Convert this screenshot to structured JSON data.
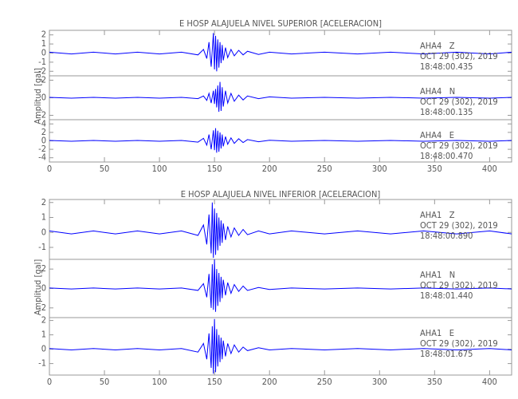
{
  "chart_data": [
    {
      "type": "line",
      "title": "E HOSP ALAJUELA NIVEL SUPERIOR [ACELERACION]",
      "ylabel": "Amplitud [gal]",
      "xlim": [
        0,
        420
      ],
      "xticks": [
        0,
        50,
        100,
        150,
        200,
        250,
        300,
        350,
        400
      ],
      "x": [
        0,
        20,
        40,
        60,
        80,
        100,
        120,
        135,
        140,
        143,
        145,
        147,
        149,
        150,
        151,
        152,
        153,
        154,
        155,
        156,
        157,
        158,
        160,
        162,
        165,
        168,
        172,
        176,
        180,
        190,
        200,
        220,
        250,
        280,
        310,
        340,
        370,
        400,
        420
      ],
      "series": [
        {
          "name": "AHA4   Z",
          "date": "OCT 29 (302), 2019",
          "time": "18:48:00.435",
          "color": "#0000ff",
          "ylim": [
            -2.5,
            2.5
          ],
          "yticks": [
            -2,
            -1,
            0,
            1,
            2
          ],
          "values": [
            0.1,
            -0.1,
            0.1,
            -0.1,
            0.1,
            -0.1,
            0.1,
            -0.2,
            0.4,
            -0.6,
            1.2,
            -1.5,
            2.2,
            -1.8,
            1.9,
            -2,
            1.5,
            -1.6,
            1.2,
            -1.1,
            0.9,
            -0.8,
            0.6,
            -0.5,
            0.4,
            -0.3,
            0.3,
            -0.2,
            0.2,
            -0.15,
            0.1,
            -0.1,
            0.1,
            -0.1,
            0.1,
            -0.1,
            0.1,
            -0.1,
            0.1
          ]
        },
        {
          "name": "AHA4   N",
          "date": "OCT 29 (302), 2019",
          "time": "18:48:00.135",
          "color": "#0000ff",
          "ylim": [
            -2.5,
            2.5
          ],
          "yticks": [
            -2,
            0,
            2
          ],
          "values": [
            0.05,
            -0.05,
            0.05,
            -0.05,
            0.05,
            -0.05,
            0.05,
            -0.1,
            0.2,
            -0.3,
            0.5,
            -0.6,
            0.8,
            -0.7,
            1.0,
            -1.1,
            1.4,
            -1.6,
            1.8,
            -1.5,
            1.2,
            -1.0,
            0.8,
            -0.6,
            0.5,
            -0.4,
            0.3,
            -0.25,
            0.2,
            -0.1,
            0.1,
            -0.05,
            0.05,
            -0.05,
            0.05,
            -0.05,
            0.05,
            -0.05,
            0.05
          ]
        },
        {
          "name": "AHA4   E",
          "date": "OCT 29 (302), 2019",
          "time": "18:48:00.470",
          "color": "#0000ff",
          "ylim": [
            -5,
            5
          ],
          "yticks": [
            -4,
            -2,
            0,
            2,
            4
          ],
          "values": [
            0.1,
            -0.1,
            0.1,
            -0.1,
            0.1,
            -0.1,
            0.1,
            -0.3,
            0.6,
            -1.0,
            1.5,
            -2.0,
            2.5,
            -2.2,
            3.0,
            -2.8,
            2.4,
            -2.6,
            2.0,
            -1.8,
            1.5,
            -1.3,
            1.0,
            -0.8,
            0.7,
            -0.6,
            0.5,
            -0.4,
            0.3,
            -0.2,
            0.15,
            -0.1,
            0.1,
            -0.1,
            0.1,
            -0.1,
            0.1,
            -0.1,
            0.1
          ]
        }
      ]
    },
    {
      "type": "line",
      "title": "E HOSP ALAJUELA NIVEL INFERIOR [ACELERACION]",
      "ylabel": "Amplitud [gal]",
      "xlim": [
        0,
        420
      ],
      "xticks": [
        0,
        50,
        100,
        150,
        200,
        250,
        300,
        350,
        400
      ],
      "x": [
        0,
        20,
        40,
        60,
        80,
        100,
        120,
        135,
        140,
        143,
        145,
        147,
        148,
        149,
        150,
        151,
        152,
        153,
        154,
        155,
        156,
        157,
        158,
        160,
        162,
        165,
        168,
        172,
        176,
        180,
        190,
        200,
        220,
        250,
        280,
        310,
        340,
        370,
        400,
        420
      ],
      "series": [
        {
          "name": "AHA1   Z",
          "date": "OCT 29 (302), 2019",
          "time": "18:48:00.890",
          "color": "#0000ff",
          "ylim": [
            -1.8,
            2.2
          ],
          "yticks": [
            -1,
            0,
            1,
            2
          ],
          "values": [
            0.1,
            -0.1,
            0.1,
            -0.1,
            0.1,
            -0.1,
            0.1,
            -0.2,
            0.5,
            -0.8,
            1.2,
            -1.4,
            2.0,
            -1.7,
            1.6,
            -1.5,
            1.3,
            -1.2,
            1.0,
            -0.9,
            0.8,
            -0.7,
            0.6,
            -0.5,
            0.4,
            -0.3,
            0.3,
            -0.2,
            0.2,
            -0.15,
            0.1,
            -0.1,
            0.1,
            -0.1,
            0.1,
            -0.1,
            0.1,
            -0.1,
            0.1,
            -0.1
          ]
        },
        {
          "name": "AHA1   N",
          "date": "OCT 29 (302), 2019",
          "time": "18:48:01.440",
          "color": "#0000ff",
          "ylim": [
            -3,
            3
          ],
          "yticks": [
            -2,
            0,
            2
          ],
          "values": [
            0.05,
            -0.05,
            0.05,
            -0.05,
            0.05,
            -0.05,
            0.05,
            -0.2,
            0.5,
            -0.9,
            1.5,
            -2.0,
            2.5,
            -2.2,
            3.0,
            -2.4,
            2.0,
            -1.8,
            1.6,
            -1.4,
            1.2,
            -1.0,
            0.9,
            -0.7,
            0.6,
            -0.5,
            0.4,
            -0.3,
            0.25,
            -0.2,
            0.1,
            -0.1,
            0.05,
            -0.05,
            0.05,
            -0.05,
            0.05,
            -0.05,
            0.05,
            -0.05
          ]
        },
        {
          "name": "AHA1   E",
          "date": "OCT 29 (302), 2019",
          "time": "18:48:01.675",
          "color": "#0000ff",
          "ylim": [
            -1.8,
            2.2
          ],
          "yticks": [
            -1,
            0,
            1,
            2
          ],
          "values": [
            0.05,
            -0.05,
            0.05,
            -0.05,
            0.05,
            -0.05,
            0.05,
            -0.2,
            0.4,
            -0.7,
            1.1,
            -1.3,
            1.6,
            -1.7,
            2.1,
            -1.6,
            1.4,
            -1.2,
            1.0,
            -0.9,
            0.8,
            -0.7,
            0.6,
            -0.5,
            0.4,
            -0.3,
            0.3,
            -0.2,
            0.15,
            -0.1,
            0.1,
            -0.05,
            0.05,
            -0.05,
            0.05,
            -0.05,
            0.05,
            -0.05,
            0.05,
            -0.05
          ]
        }
      ]
    }
  ]
}
